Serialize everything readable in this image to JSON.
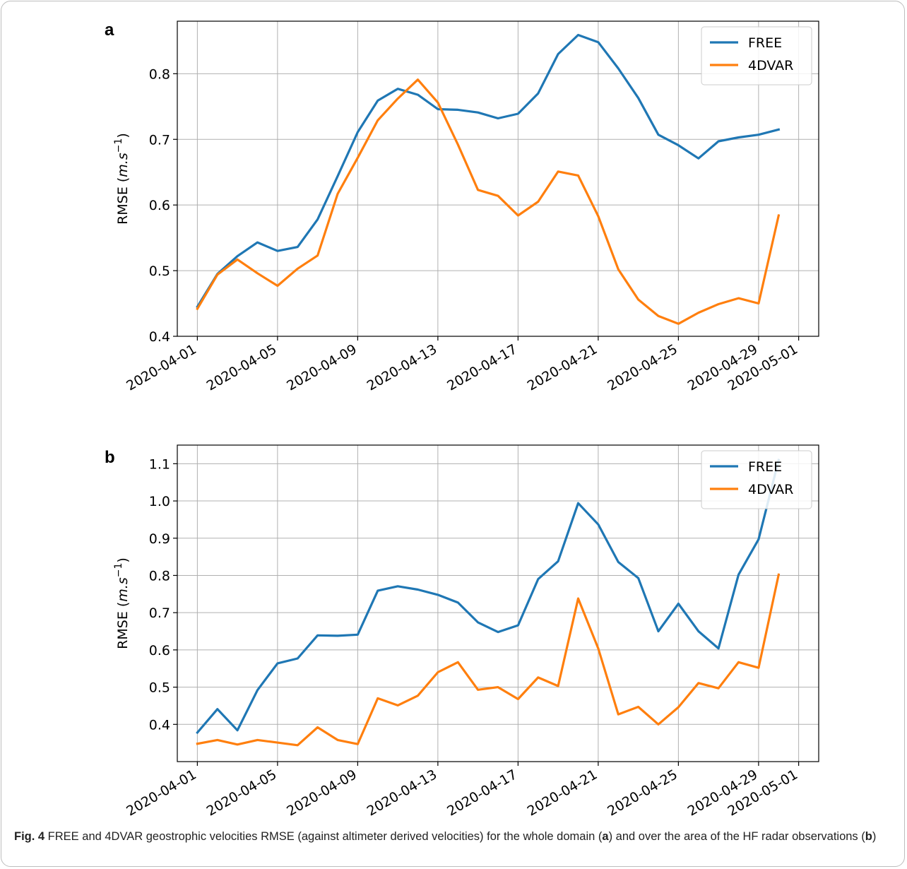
{
  "chart_data": [
    {
      "type": "line",
      "panel_label": "a",
      "ylabel_prefix": "RMSE (",
      "ylabel_math": "m.s",
      "ylabel_exp": "−1",
      "ylabel_suffix": ")",
      "ylim": [
        0.4,
        0.88
      ],
      "yticks": [
        0.4,
        0.5,
        0.6,
        0.7,
        0.8
      ],
      "ytick_labels": [
        "0.4",
        "0.5",
        "0.6",
        "0.7",
        "0.8"
      ],
      "xlim": [
        "2020-03-31",
        "2020-05-02"
      ],
      "xticks": [
        "2020-04-01",
        "2020-04-05",
        "2020-04-09",
        "2020-04-13",
        "2020-04-17",
        "2020-04-21",
        "2020-04-25",
        "2020-04-29",
        "2020-05-01"
      ],
      "grid": true,
      "legend_position": "top-right",
      "x": [
        "2020-04-01",
        "2020-04-02",
        "2020-04-03",
        "2020-04-04",
        "2020-04-05",
        "2020-04-06",
        "2020-04-07",
        "2020-04-08",
        "2020-04-09",
        "2020-04-10",
        "2020-04-11",
        "2020-04-12",
        "2020-04-13",
        "2020-04-14",
        "2020-04-15",
        "2020-04-16",
        "2020-04-17",
        "2020-04-18",
        "2020-04-19",
        "2020-04-20",
        "2020-04-21",
        "2020-04-22",
        "2020-04-23",
        "2020-04-24",
        "2020-04-25",
        "2020-04-26",
        "2020-04-27",
        "2020-04-28",
        "2020-04-29",
        "2020-04-30"
      ],
      "series": [
        {
          "name": "FREE",
          "color": "#1f77b4",
          "values": [
            0.445,
            0.495,
            0.522,
            0.543,
            0.53,
            0.536,
            0.578,
            0.644,
            0.711,
            0.759,
            0.777,
            0.768,
            0.746,
            0.745,
            0.741,
            0.732,
            0.739,
            0.77,
            0.83,
            0.859,
            0.848,
            0.808,
            0.763,
            0.707,
            0.691,
            0.671,
            0.697,
            0.703,
            0.707,
            0.715
          ]
        },
        {
          "name": "4DVAR",
          "color": "#ff7f0e",
          "values": [
            0.442,
            0.494,
            0.517,
            0.496,
            0.477,
            0.503,
            0.523,
            0.617,
            0.672,
            0.729,
            0.762,
            0.791,
            0.756,
            0.692,
            0.623,
            0.614,
            0.584,
            0.605,
            0.651,
            0.645,
            0.583,
            0.502,
            0.456,
            0.431,
            0.419,
            0.436,
            0.449,
            0.458,
            0.45,
            0.584
          ]
        }
      ]
    },
    {
      "type": "line",
      "panel_label": "b",
      "ylabel_prefix": "RMSE (",
      "ylabel_math": "m.s",
      "ylabel_exp": "−1",
      "ylabel_suffix": ")",
      "ylim": [
        0.3,
        1.15
      ],
      "yticks": [
        0.4,
        0.5,
        0.6,
        0.7,
        0.8,
        0.9,
        1.0,
        1.1
      ],
      "ytick_labels": [
        "0.4",
        "0.5",
        "0.6",
        "0.7",
        "0.8",
        "0.9",
        "1.0",
        "1.1"
      ],
      "xlim": [
        "2020-03-31",
        "2020-05-02"
      ],
      "xticks": [
        "2020-04-01",
        "2020-04-05",
        "2020-04-09",
        "2020-04-13",
        "2020-04-17",
        "2020-04-21",
        "2020-04-25",
        "2020-04-29",
        "2020-05-01"
      ],
      "grid": true,
      "legend_position": "top-right",
      "x": [
        "2020-04-01",
        "2020-04-02",
        "2020-04-03",
        "2020-04-04",
        "2020-04-05",
        "2020-04-06",
        "2020-04-07",
        "2020-04-08",
        "2020-04-09",
        "2020-04-10",
        "2020-04-11",
        "2020-04-12",
        "2020-04-13",
        "2020-04-14",
        "2020-04-15",
        "2020-04-16",
        "2020-04-17",
        "2020-04-18",
        "2020-04-19",
        "2020-04-20",
        "2020-04-21",
        "2020-04-22",
        "2020-04-23",
        "2020-04-24",
        "2020-04-25",
        "2020-04-26",
        "2020-04-27",
        "2020-04-28",
        "2020-04-29",
        "2020-04-30"
      ],
      "series": [
        {
          "name": "FREE",
          "color": "#1f77b4",
          "values": [
            0.378,
            0.441,
            0.384,
            0.492,
            0.564,
            0.577,
            0.639,
            0.638,
            0.641,
            0.759,
            0.771,
            0.762,
            0.748,
            0.727,
            0.674,
            0.648,
            0.666,
            0.79,
            0.838,
            0.994,
            0.937,
            0.836,
            0.793,
            0.65,
            0.724,
            0.65,
            0.604,
            0.802,
            0.897,
            1.11
          ]
        },
        {
          "name": "4DVAR",
          "color": "#ff7f0e",
          "values": [
            0.348,
            0.358,
            0.346,
            0.358,
            0.351,
            0.344,
            0.392,
            0.358,
            0.347,
            0.47,
            0.451,
            0.477,
            0.54,
            0.567,
            0.493,
            0.5,
            0.468,
            0.526,
            0.503,
            0.738,
            0.604,
            0.427,
            0.447,
            0.4,
            0.446,
            0.511,
            0.497,
            0.567,
            0.552,
            0.802
          ]
        }
      ]
    }
  ],
  "caption": {
    "fig_label": "Fig. 4",
    "text_1": "  FREE and 4DVAR geostrophic velocities RMSE (against altimeter derived velocities) for the whole domain (",
    "panel_a": "a",
    "text_2": ") and over the area of the HF radar observations (",
    "panel_b": "b",
    "text_3": ")"
  }
}
